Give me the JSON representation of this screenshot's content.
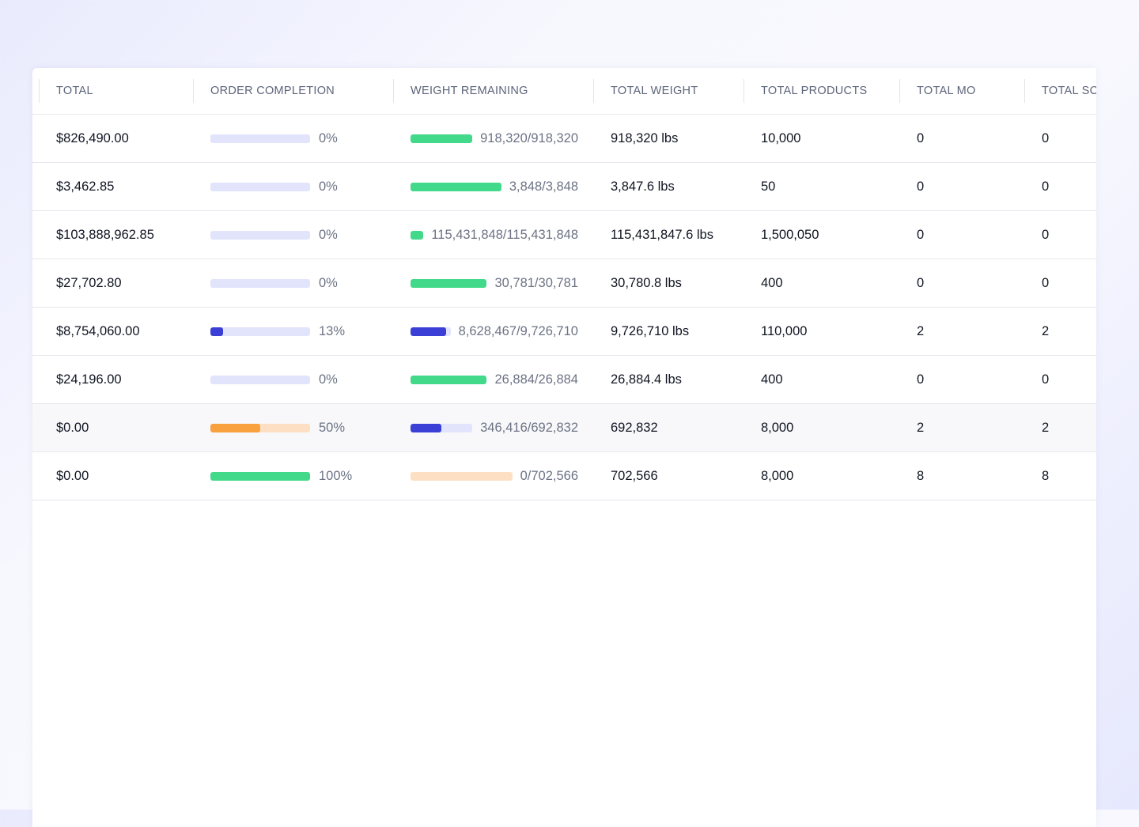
{
  "colors": {
    "track_default": "#e1e4fb",
    "track_orange": "#fde0c4",
    "fill_green": "#42d98a",
    "fill_blue": "#3b3fd6",
    "fill_orange": "#f9a03f"
  },
  "columns": [
    {
      "label": "TOTAL"
    },
    {
      "label": "ORDER COMPLETION"
    },
    {
      "label": "WEIGHT REMAINING"
    },
    {
      "label": "TOTAL WEIGHT"
    },
    {
      "label": "TOTAL PRODUCTS"
    },
    {
      "label": "TOTAL MO"
    },
    {
      "label": "TOTAL SC"
    }
  ],
  "rows": [
    {
      "total": "$826,490.00",
      "completion": {
        "text": "0%",
        "value": 0,
        "fill": "blue",
        "track": "default"
      },
      "weight_remaining": {
        "text": "918,320/918,320",
        "fill": "green",
        "track": "default",
        "value": 1
      },
      "total_weight": "918,320 lbs",
      "total_products": "10,000",
      "total_mo": "0",
      "total_so": "0"
    },
    {
      "total": "$3,462.85",
      "completion": {
        "text": "0%",
        "value": 0,
        "fill": "blue",
        "track": "default"
      },
      "weight_remaining": {
        "text": "3,848/3,848",
        "fill": "green",
        "track": "default",
        "value": 1
      },
      "total_weight": "3,847.6 lbs",
      "total_products": "50",
      "total_mo": "0",
      "total_so": "0"
    },
    {
      "total": "$103,888,962.85",
      "completion": {
        "text": "0%",
        "value": 0,
        "fill": "blue",
        "track": "default"
      },
      "weight_remaining": {
        "text": "115,431,848/115,431,848",
        "fill": "green",
        "track": "default",
        "value": 1
      },
      "total_weight": "115,431,847.6 lbs",
      "total_products": "1,500,050",
      "total_mo": "0",
      "total_so": "0"
    },
    {
      "total": "$27,702.80",
      "completion": {
        "text": "0%",
        "value": 0,
        "fill": "blue",
        "track": "default"
      },
      "weight_remaining": {
        "text": "30,781/30,781",
        "fill": "green",
        "track": "default",
        "value": 1
      },
      "total_weight": "30,780.8 lbs",
      "total_products": "400",
      "total_mo": "0",
      "total_so": "0"
    },
    {
      "total": "$8,754,060.00",
      "completion": {
        "text": "13%",
        "value": 0.13,
        "fill": "blue",
        "track": "default"
      },
      "weight_remaining": {
        "text": "8,628,467/9,726,710",
        "fill": "blue",
        "track": "default",
        "value": 0.887
      },
      "total_weight": "9,726,710 lbs",
      "total_products": "110,000",
      "total_mo": "2",
      "total_so": "2"
    },
    {
      "total": "$24,196.00",
      "completion": {
        "text": "0%",
        "value": 0,
        "fill": "blue",
        "track": "default"
      },
      "weight_remaining": {
        "text": "26,884/26,884",
        "fill": "green",
        "track": "default",
        "value": 1
      },
      "total_weight": "26,884.4 lbs",
      "total_products": "400",
      "total_mo": "0",
      "total_so": "0"
    },
    {
      "total": "$0.00",
      "completion": {
        "text": "50%",
        "value": 0.5,
        "fill": "orange",
        "track": "orange"
      },
      "weight_remaining": {
        "text": "346,416/692,832",
        "fill": "blue",
        "track": "default",
        "value": 0.5
      },
      "total_weight": "692,832",
      "total_products": "8,000",
      "total_mo": "2",
      "total_so": "2",
      "highlighted": true
    },
    {
      "total": "$0.00",
      "completion": {
        "text": "100%",
        "value": 1,
        "fill": "green",
        "track": "default"
      },
      "weight_remaining": {
        "text": "0/702,566",
        "fill": "orange",
        "track": "orange",
        "value": 0
      },
      "total_weight": "702,566",
      "total_products": "8,000",
      "total_mo": "8",
      "total_so": "8"
    }
  ]
}
